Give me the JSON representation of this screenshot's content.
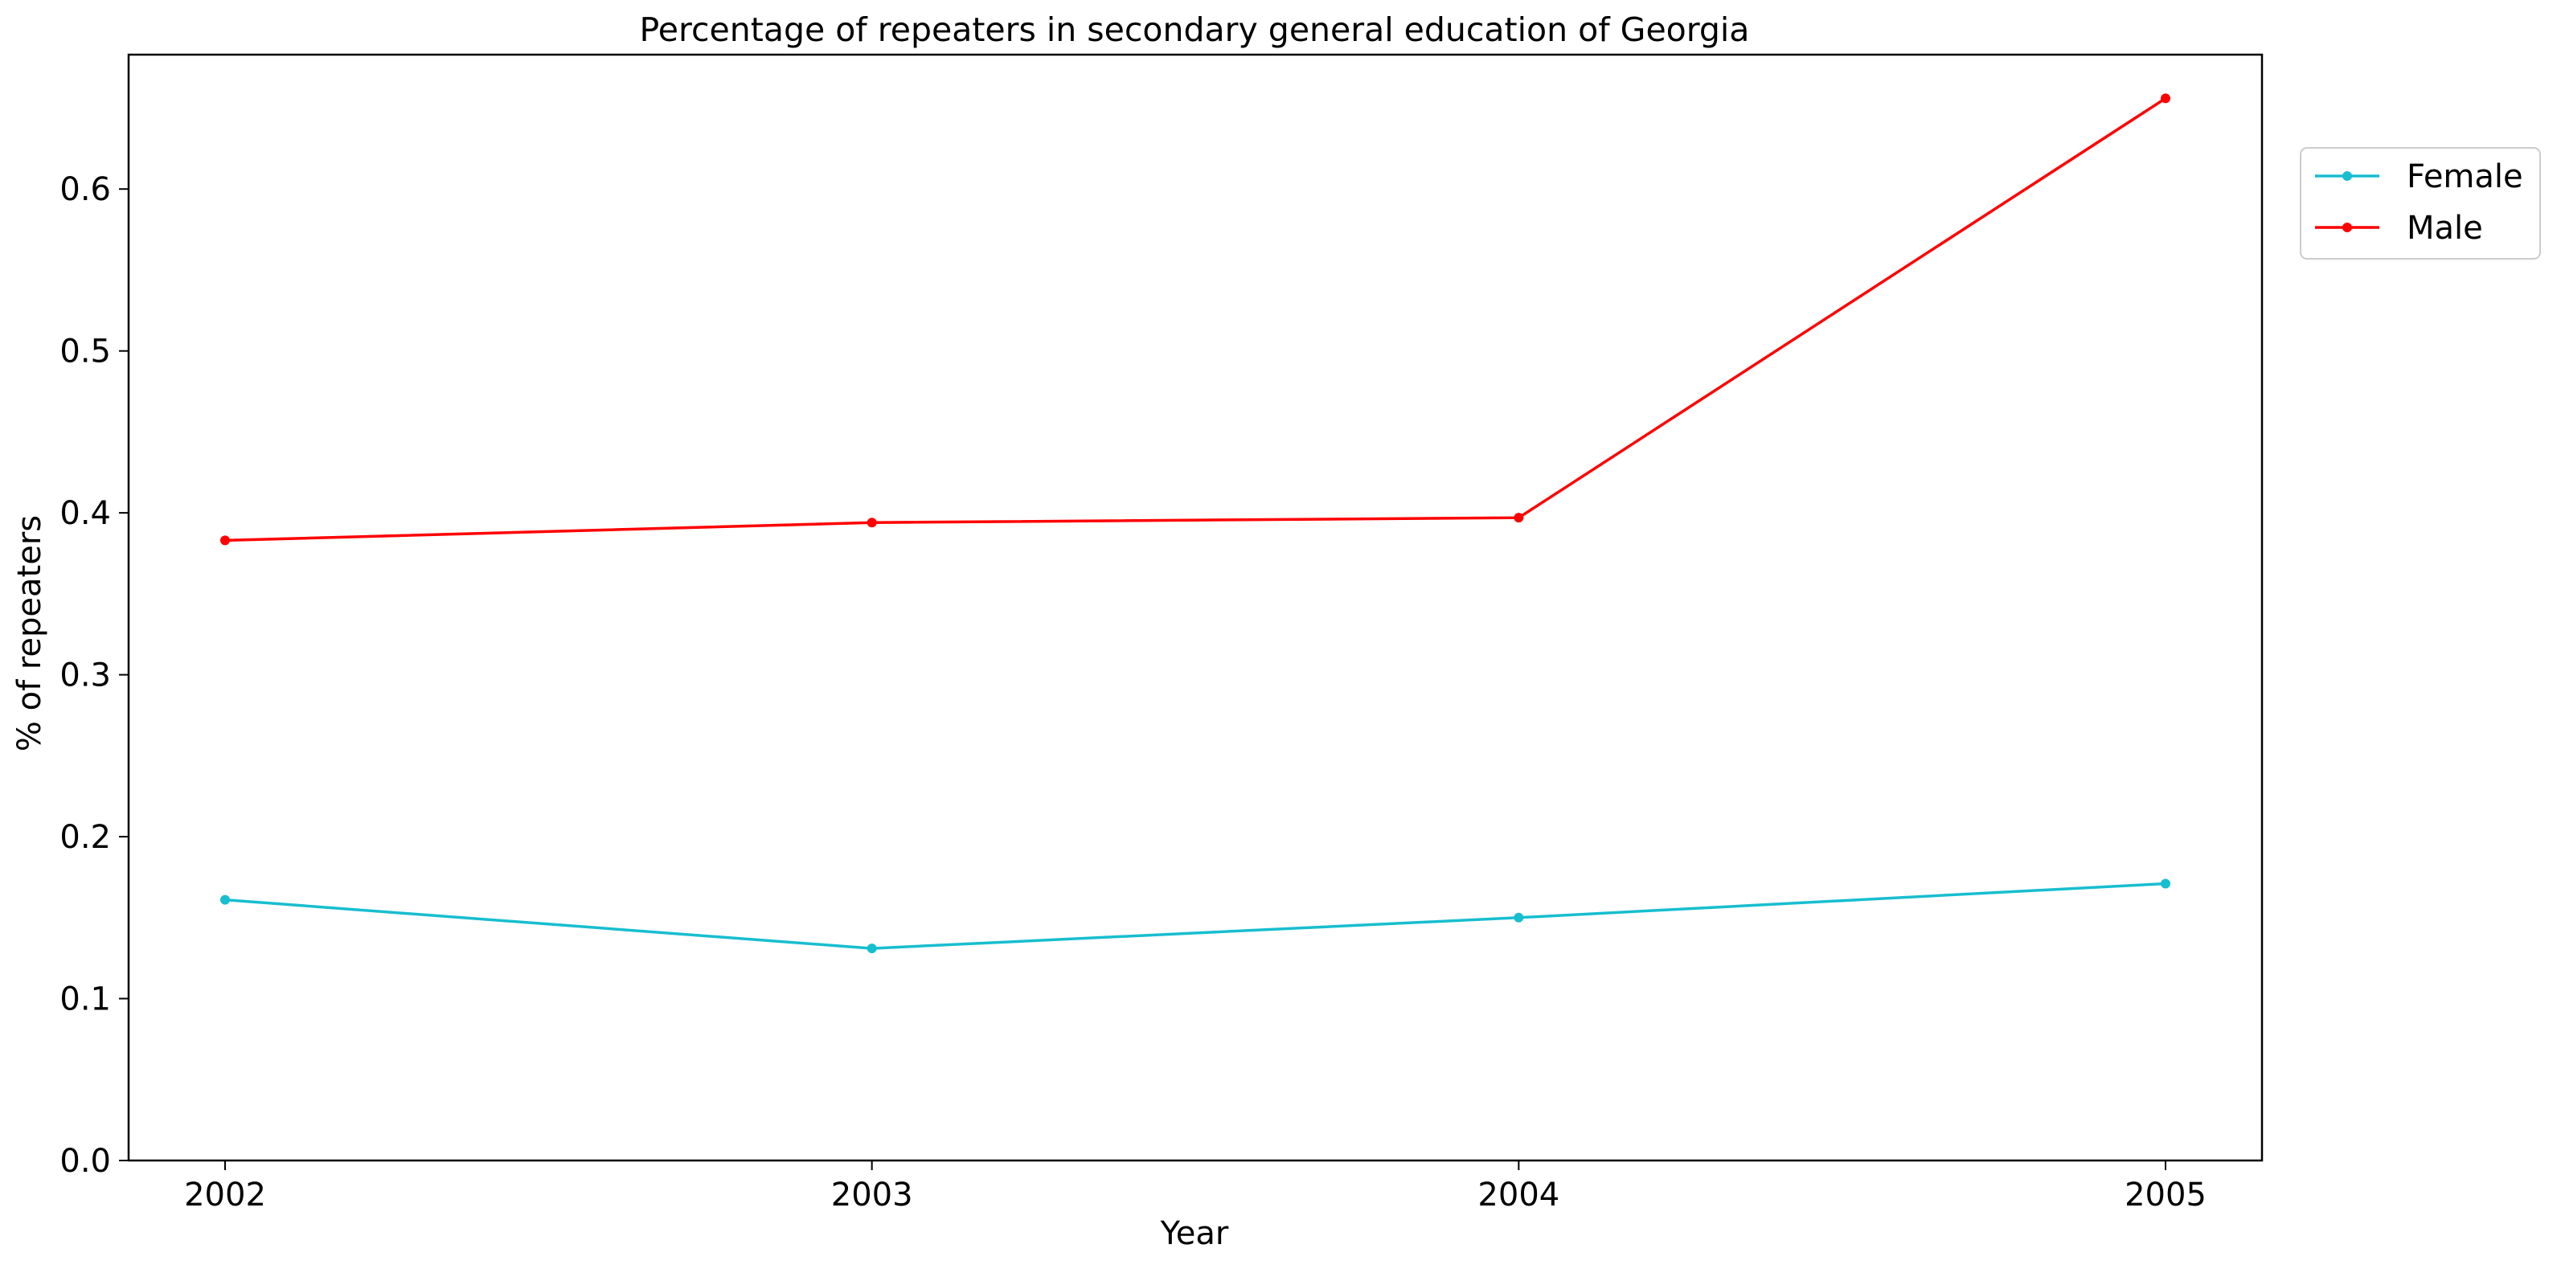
{
  "chart_data": {
    "type": "line",
    "title": "Percentage of repeaters in secondary general education of Georgia",
    "xlabel": "Year",
    "ylabel": "% of repeaters",
    "categories": [
      "2002",
      "2003",
      "2004",
      "2005"
    ],
    "yticks": [
      "0.0",
      "0.1",
      "0.2",
      "0.3",
      "0.4",
      "0.5",
      "0.6"
    ],
    "ylim": [
      0,
      0.683
    ],
    "grid": false,
    "legend_position": "top-right, outside plot",
    "series": [
      {
        "name": "Female",
        "color": "#17becf",
        "values": [
          0.161,
          0.131,
          0.15,
          0.171
        ]
      },
      {
        "name": "Male",
        "color": "#ff0000",
        "values": [
          0.383,
          0.394,
          0.397,
          0.656
        ]
      }
    ]
  }
}
